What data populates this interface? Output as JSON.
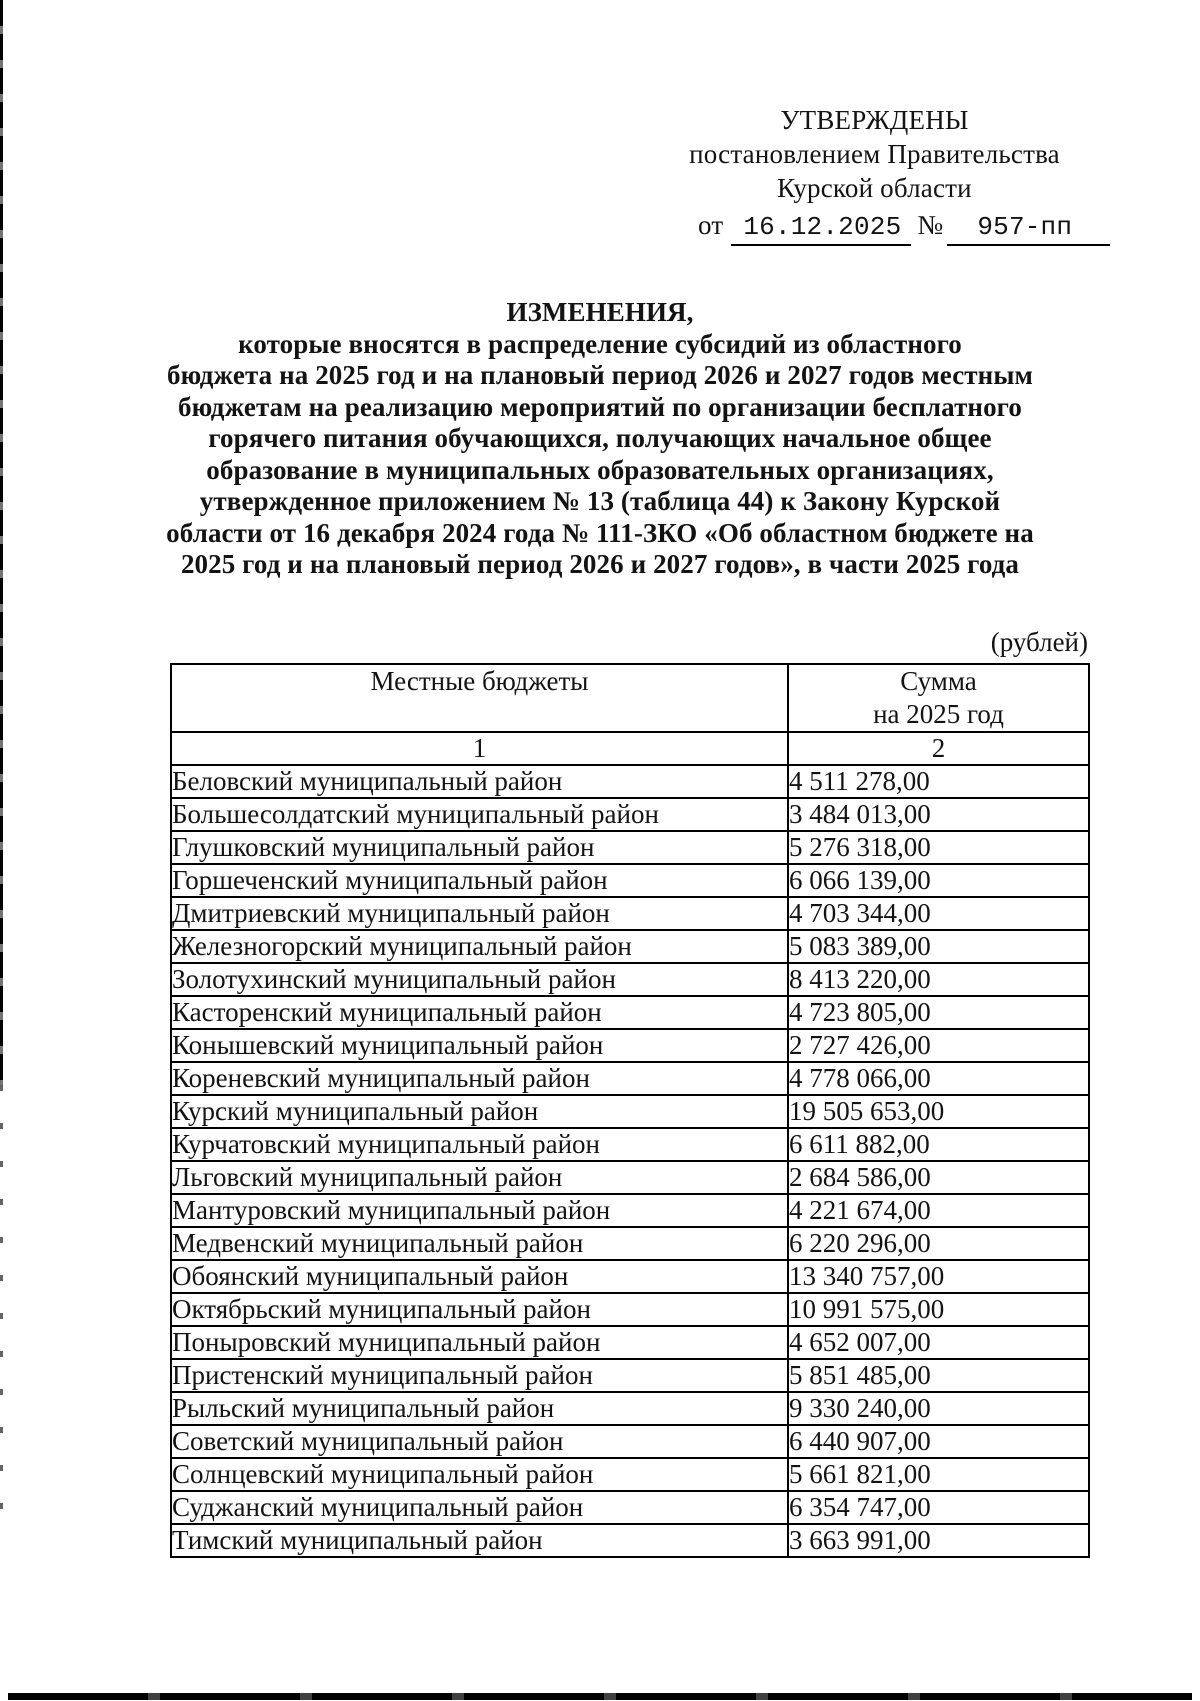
{
  "approval": {
    "line1": "УТВЕРЖДЕНЫ",
    "line2": "постановлением Правительства",
    "line3": "Курской области",
    "date_prefix": "от",
    "date": "16.12.2025",
    "number_sign": "№",
    "number": "957-пп"
  },
  "title": {
    "heading": "ИЗМЕНЕНИЯ,",
    "body": "которые вносятся в распределение субсидий из областного\nбюджета на 2025 год и на плановый период 2026 и 2027 годов местным\nбюджетам на реализацию мероприятий по организации бесплатного\nгорячего питания обучающихся, получающих начальное общее\nобразование в муниципальных образовательных организациях,\nутвержденное приложением № 13 (таблица 44) к Закону Курской\nобласти от 16 декабря 2024 года № 111-ЗКО «Об областном бюджете на\n2025 год и на плановый период 2026 и 2027 годов», в части 2025 года"
  },
  "rubles_note": "(рублей)",
  "table": {
    "col1_header": "Местные бюджеты",
    "col2_header_line1": "Сумма",
    "col2_header_line2": "на 2025 год",
    "col1_number": "1",
    "col2_number": "2",
    "rows": [
      {
        "name": "Беловский муниципальный район",
        "amount": "4 511 278,00"
      },
      {
        "name": "Большесолдатский муниципальный район",
        "amount": "3 484 013,00"
      },
      {
        "name": "Глушковский муниципальный район",
        "amount": "5 276 318,00"
      },
      {
        "name": "Горшеченский муниципальный район",
        "amount": "6 066 139,00"
      },
      {
        "name": "Дмитриевский муниципальный район",
        "amount": "4 703 344,00"
      },
      {
        "name": "Железногорский муниципальный район",
        "amount": "5 083 389,00"
      },
      {
        "name": "Золотухинский муниципальный район",
        "amount": "8 413 220,00"
      },
      {
        "name": "Касторенский муниципальный район",
        "amount": "4 723 805,00"
      },
      {
        "name": "Конышевский муниципальный район",
        "amount": "2 727 426,00"
      },
      {
        "name": "Кореневский муниципальный район",
        "amount": "4 778 066,00"
      },
      {
        "name": "Курский муниципальный район",
        "amount": "19 505 653,00"
      },
      {
        "name": "Курчатовский муниципальный район",
        "amount": "6 611 882,00"
      },
      {
        "name": "Льговский муниципальный район",
        "amount": "2 684 586,00"
      },
      {
        "name": "Мантуровский муниципальный район",
        "amount": "4 221 674,00"
      },
      {
        "name": "Медвенский муниципальный район",
        "amount": "6 220 296,00"
      },
      {
        "name": "Обоянский муниципальный район",
        "amount": "13 340 757,00"
      },
      {
        "name": "Октябрьский муниципальный район",
        "amount": "10 991 575,00"
      },
      {
        "name": "Поныровский муниципальный район",
        "amount": "4 652 007,00"
      },
      {
        "name": "Пристенский муниципальный район",
        "amount": "5 851 485,00"
      },
      {
        "name": "Рыльский муниципальный район",
        "amount": "9 330 240,00"
      },
      {
        "name": "Советский муниципальный район",
        "amount": "6 440 907,00"
      },
      {
        "name": "Солнцевский муниципальный район",
        "amount": "5 661 821,00"
      },
      {
        "name": "Суджанский муниципальный район",
        "amount": "6 354 747,00"
      },
      {
        "name": "Тимский муниципальный район",
        "amount": "3 663 991,00"
      }
    ]
  }
}
